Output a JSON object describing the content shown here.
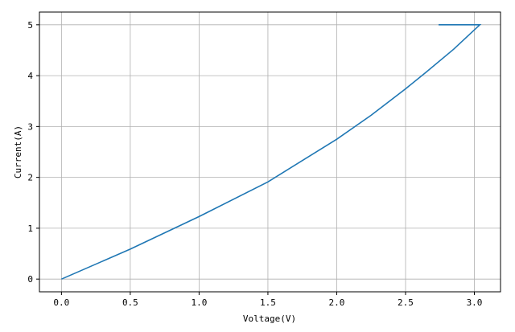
{
  "chart_data": {
    "type": "line",
    "title": "",
    "xlabel": "Voltage(V)",
    "ylabel": "Current(A)",
    "xlim": [
      -0.16,
      3.19
    ],
    "ylim": [
      -0.25,
      5.25
    ],
    "xticks": [
      "0.0",
      "0.5",
      "1.0",
      "1.5",
      "2.0",
      "2.5",
      "3.0"
    ],
    "yticks": [
      "0",
      "1",
      "2",
      "3",
      "4",
      "5"
    ],
    "grid": true,
    "series": [
      {
        "color": "#1f77b4",
        "x": [
          0.0,
          0.5,
          1.0,
          1.5,
          2.0,
          2.25,
          2.5,
          2.65,
          2.85,
          3.04,
          2.74
        ],
        "y": [
          0.0,
          0.59,
          1.23,
          1.91,
          2.75,
          3.22,
          3.74,
          4.07,
          4.52,
          5.0,
          5.0
        ]
      }
    ]
  }
}
